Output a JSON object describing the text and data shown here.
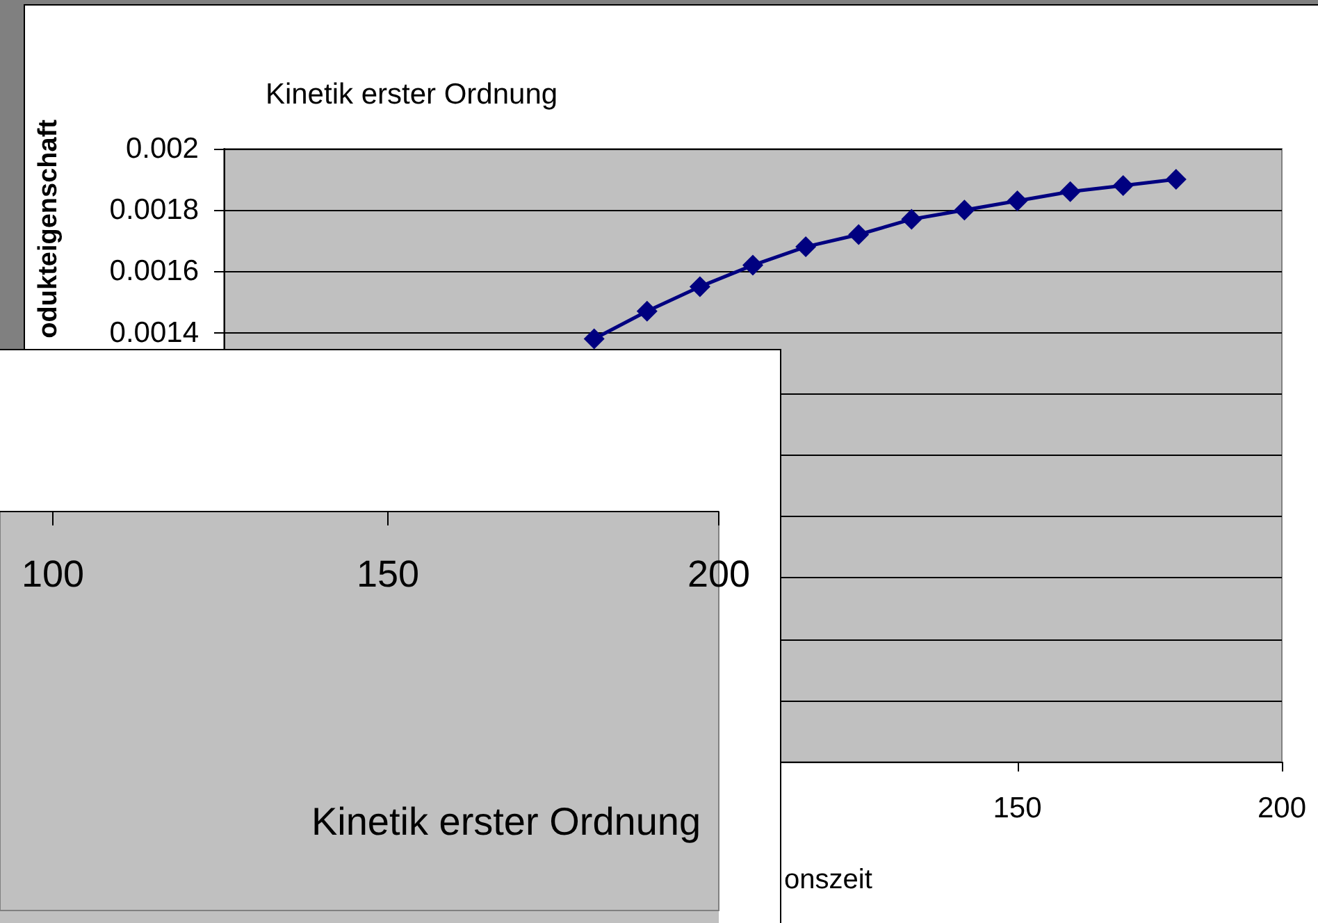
{
  "chart_data": [
    {
      "type": "line",
      "title": "Kinetik erster Ordnung",
      "xlabel": "onszeit",
      "ylabel": "odukteigenschaft",
      "x": [
        70,
        80,
        90,
        100,
        110,
        120,
        130,
        140,
        150,
        160,
        170,
        180
      ],
      "values": [
        0.00138,
        0.00147,
        0.00155,
        0.00162,
        0.00168,
        0.00172,
        0.00177,
        0.0018,
        0.00183,
        0.00186,
        0.00188,
        0.0019
      ],
      "color": "#000080",
      "marker": "diamond",
      "line_style": "solid",
      "xlim": [
        0,
        200
      ],
      "ylim": [
        0,
        0.002
      ],
      "xticks": [
        150,
        200
      ],
      "yticks": [
        {
          "value": 0,
          "label": null
        },
        {
          "value": 0.0002,
          "label": null
        },
        {
          "value": 0.0004,
          "label": null
        },
        {
          "value": 0.0006,
          "label": null
        },
        {
          "value": 0.0008,
          "label": null
        },
        {
          "value": 0.001,
          "label": null
        },
        {
          "value": 0.0012,
          "label": null
        },
        0.0014,
        0.0016,
        0.0018,
        0.002
      ],
      "grid": "y"
    },
    {
      "type": "other",
      "title": "Kinetik erster Ordnung",
      "annotations": [
        "100",
        "150",
        "200"
      ]
    }
  ]
}
